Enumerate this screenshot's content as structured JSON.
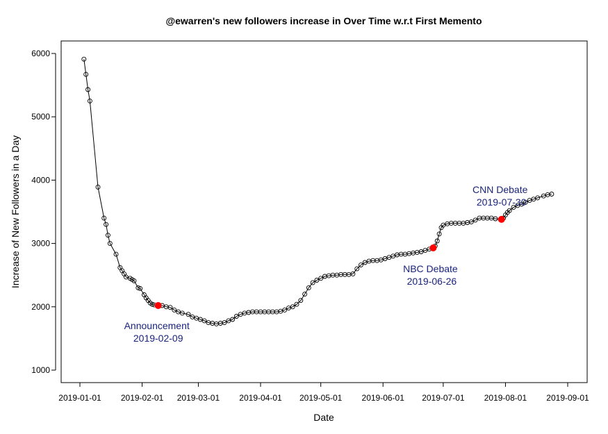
{
  "chart_data": {
    "type": "line",
    "title": "@ewarren's new followers increase in Over Time w.r.t First Memento",
    "xlabel": "Date",
    "ylabel": "Increase of New Followers in a Day",
    "xlim": [
      "2019-01-01",
      "2019-09-01"
    ],
    "ylim": [
      1000,
      6000
    ],
    "x_ticks": [
      "2019-01-01",
      "2019-02-01",
      "2019-03-01",
      "2019-04-01",
      "2019-05-01",
      "2019-06-01",
      "2019-07-01",
      "2019-08-01",
      "2019-09-01"
    ],
    "y_ticks": [
      "1000",
      "2000",
      "3000",
      "4000",
      "5000",
      "6000"
    ],
    "grid": false,
    "legend": "none",
    "line_color": "#000000",
    "highlight_color": "#ff0000",
    "annotation_color": "#1a237e",
    "series": [
      {
        "x": [
          "2019-01-03",
          "2019-01-04",
          "2019-01-05",
          "2019-01-06",
          "2019-01-10",
          "2019-01-13",
          "2019-01-14",
          "2019-01-15",
          "2019-01-16",
          "2019-01-19",
          "2019-01-21",
          "2019-01-22",
          "2019-01-23",
          "2019-01-24",
          "2019-01-26",
          "2019-01-27",
          "2019-01-28",
          "2019-01-30",
          "2019-01-31",
          "2019-02-02",
          "2019-02-03",
          "2019-02-04",
          "2019-02-05",
          "2019-02-06",
          "2019-02-07",
          "2019-02-09",
          "2019-02-11",
          "2019-02-13",
          "2019-02-15",
          "2019-02-17",
          "2019-02-19",
          "2019-02-21",
          "2019-02-24",
          "2019-02-26",
          "2019-02-28",
          "2019-03-02",
          "2019-03-04",
          "2019-03-06",
          "2019-03-08",
          "2019-03-10",
          "2019-03-12",
          "2019-03-14",
          "2019-03-16",
          "2019-03-18",
          "2019-03-20",
          "2019-03-22",
          "2019-03-24",
          "2019-03-26",
          "2019-03-28",
          "2019-03-30",
          "2019-04-01",
          "2019-04-03",
          "2019-04-05",
          "2019-04-07",
          "2019-04-09",
          "2019-04-11",
          "2019-04-13",
          "2019-04-15",
          "2019-04-17",
          "2019-04-19",
          "2019-04-21",
          "2019-04-23",
          "2019-04-25",
          "2019-04-27",
          "2019-04-29",
          "2019-05-01",
          "2019-05-03",
          "2019-05-05",
          "2019-05-07",
          "2019-05-09",
          "2019-05-11",
          "2019-05-13",
          "2019-05-15",
          "2019-05-17",
          "2019-05-19",
          "2019-05-21",
          "2019-05-23",
          "2019-05-25",
          "2019-05-27",
          "2019-05-29",
          "2019-05-31",
          "2019-06-02",
          "2019-06-04",
          "2019-06-06",
          "2019-06-08",
          "2019-06-10",
          "2019-06-12",
          "2019-06-14",
          "2019-06-16",
          "2019-06-18",
          "2019-06-20",
          "2019-06-22",
          "2019-06-24",
          "2019-06-26",
          "2019-06-27",
          "2019-06-28",
          "2019-06-29",
          "2019-06-30",
          "2019-07-01",
          "2019-07-03",
          "2019-07-05",
          "2019-07-07",
          "2019-07-09",
          "2019-07-11",
          "2019-07-13",
          "2019-07-15",
          "2019-07-17",
          "2019-07-19",
          "2019-07-21",
          "2019-07-23",
          "2019-07-25",
          "2019-07-27",
          "2019-07-30",
          "2019-07-31",
          "2019-08-01",
          "2019-08-02",
          "2019-08-03",
          "2019-08-05",
          "2019-08-07",
          "2019-08-09",
          "2019-08-11",
          "2019-08-13",
          "2019-08-15",
          "2019-08-17",
          "2019-08-20",
          "2019-08-22",
          "2019-08-24"
        ],
        "y": [
          5910,
          5670,
          5430,
          5250,
          3890,
          3400,
          3300,
          3130,
          3000,
          2830,
          2620,
          2570,
          2520,
          2470,
          2450,
          2430,
          2410,
          2300,
          2290,
          2190,
          2140,
          2100,
          2060,
          2040,
          2030,
          2020,
          2020,
          2000,
          1990,
          1950,
          1920,
          1900,
          1880,
          1840,
          1820,
          1800,
          1780,
          1750,
          1740,
          1730,
          1740,
          1750,
          1780,
          1800,
          1850,
          1880,
          1900,
          1910,
          1920,
          1920,
          1920,
          1920,
          1920,
          1920,
          1920,
          1930,
          1950,
          1980,
          2000,
          2040,
          2100,
          2200,
          2300,
          2380,
          2420,
          2450,
          2480,
          2490,
          2500,
          2500,
          2510,
          2510,
          2510,
          2520,
          2600,
          2660,
          2700,
          2720,
          2730,
          2730,
          2740,
          2760,
          2780,
          2800,
          2820,
          2830,
          2830,
          2840,
          2850,
          2860,
          2870,
          2890,
          2910,
          2930,
          2960,
          3040,
          3150,
          3250,
          3290,
          3310,
          3320,
          3320,
          3320,
          3320,
          3330,
          3340,
          3370,
          3400,
          3400,
          3400,
          3400,
          3390,
          3380,
          3400,
          3450,
          3490,
          3520,
          3570,
          3600,
          3620,
          3650,
          3680,
          3700,
          3720,
          3750,
          3770,
          3780
        ],
        "markers": "open-circle"
      }
    ],
    "highlights": [
      {
        "x": "2019-02-09",
        "y": 2020,
        "label": "Announcement",
        "date_label": "2019-02-09"
      },
      {
        "x": "2019-06-26",
        "y": 2930,
        "label": "NBC Debate",
        "date_label": "2019-06-26"
      },
      {
        "x": "2019-07-30",
        "y": 3380,
        "label": "CNN Debate",
        "date_label": "2019-07-30"
      }
    ]
  }
}
